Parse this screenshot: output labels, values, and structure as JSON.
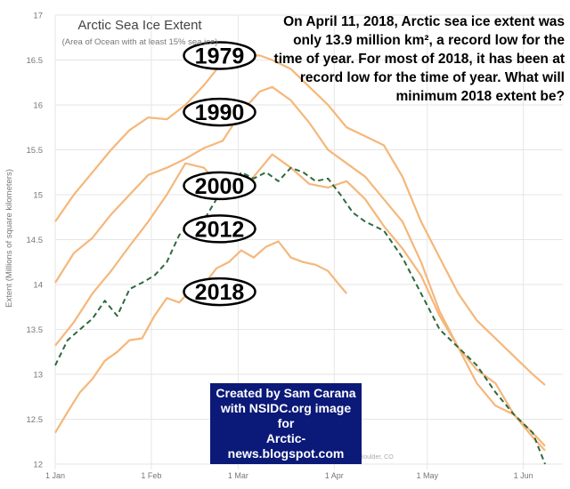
{
  "colors": {
    "series_line": "#f5b77a",
    "series_2018": "#2f6a3e",
    "grid": "#e6e6e6",
    "axis_text": "#777777",
    "credit_bg": "#0b1a78",
    "credit_text": "#ffffff"
  },
  "headline": "On April 11, 2018, Arctic sea ice extent was only 13.9 million km², a record low for the time of year. For most of 2018, it has been at record low for the time of year. What will minimum 2018 extent be?",
  "credit": {
    "line1": "Created by Sam Carana",
    "line2": "with NSIDC.org image for",
    "line3": "Arctic-news.blogspot.com"
  },
  "chart_data": {
    "type": "line",
    "title": "Arctic Sea Ice Extent",
    "subtitle": "(Area of Ocean with at least 15% sea ice)",
    "ylabel": "Extent (Millions of square kilometers)",
    "xlabel": "",
    "source_note": "National Snow and Ice Data Center, Boulder, CO",
    "ylim": [
      12,
      17
    ],
    "xlim": [
      0,
      158
    ],
    "yticks": [
      "12",
      "12.5",
      "13",
      "13.5",
      "14",
      "14.5",
      "15",
      "15.5",
      "16",
      "16.5",
      "17"
    ],
    "xticks": [
      {
        "label": "1 Jan",
        "day": 0
      },
      {
        "label": "1 Feb",
        "day": 31
      },
      {
        "label": "1 Mar",
        "day": 59
      },
      {
        "label": "1 Apr",
        "day": 90
      },
      {
        "label": "1 May",
        "day": 120
      },
      {
        "label": "1 Jun",
        "day": 151
      }
    ],
    "series": [
      {
        "name": "1979",
        "label_day": 53,
        "label_value": 16.55,
        "x": [
          0,
          6,
          12,
          18,
          24,
          30,
          36,
          42,
          48,
          54,
          60,
          66,
          70,
          76,
          82,
          88,
          94,
          100,
          106,
          112,
          118,
          124,
          130,
          136,
          142,
          148,
          154,
          158
        ],
        "values": [
          14.7,
          15.0,
          15.25,
          15.5,
          15.72,
          15.86,
          15.84,
          16.0,
          16.22,
          16.48,
          16.55,
          16.55,
          16.5,
          16.4,
          16.2,
          16.0,
          15.75,
          15.65,
          15.55,
          15.2,
          14.7,
          14.3,
          13.9,
          13.6,
          13.4,
          13.2,
          13.0,
          12.88
        ]
      },
      {
        "name": "1990",
        "label_day": 53,
        "label_value": 15.92,
        "x": [
          0,
          6,
          12,
          18,
          24,
          30,
          36,
          42,
          48,
          54,
          60,
          66,
          70,
          76,
          82,
          88,
          94,
          100,
          106,
          112,
          118,
          124,
          130,
          136,
          142,
          148,
          154,
          158
        ],
        "values": [
          14.02,
          14.35,
          14.52,
          14.78,
          15.0,
          15.22,
          15.3,
          15.4,
          15.52,
          15.6,
          15.92,
          16.15,
          16.2,
          16.05,
          15.8,
          15.5,
          15.35,
          15.2,
          14.95,
          14.7,
          14.25,
          13.7,
          13.3,
          13.05,
          12.9,
          12.55,
          12.3,
          12.15
        ]
      },
      {
        "name": "2000",
        "label_day": 53,
        "label_value": 15.1,
        "x": [
          0,
          6,
          12,
          18,
          24,
          30,
          36,
          42,
          48,
          54,
          58,
          64,
          70,
          76,
          82,
          88,
          94,
          100,
          106,
          112,
          118,
          124,
          130,
          136,
          142,
          148,
          154,
          158
        ],
        "values": [
          13.32,
          13.58,
          13.9,
          14.15,
          14.43,
          14.7,
          15.0,
          15.35,
          15.3,
          15.05,
          15.0,
          15.2,
          15.45,
          15.3,
          15.12,
          15.08,
          15.15,
          14.95,
          14.65,
          14.4,
          14.1,
          13.65,
          13.3,
          12.9,
          12.65,
          12.55,
          12.35,
          12.2
        ]
      },
      {
        "name": "2012",
        "label_day": 53,
        "label_value": 14.62,
        "x": [
          0,
          4,
          8,
          12,
          16,
          20,
          24,
          28,
          32,
          36,
          40,
          44,
          48,
          52,
          56,
          60,
          64,
          68,
          72,
          76,
          80,
          84,
          88,
          92,
          96,
          100,
          106,
          112,
          118,
          124,
          130,
          136,
          142,
          148,
          154,
          158
        ],
        "values": [
          13.1,
          13.38,
          13.5,
          13.62,
          13.82,
          13.65,
          13.95,
          14.02,
          14.1,
          14.25,
          14.55,
          14.68,
          14.72,
          14.95,
          15.05,
          15.25,
          15.18,
          15.25,
          15.15,
          15.3,
          15.25,
          15.15,
          15.18,
          15.0,
          14.8,
          14.7,
          14.6,
          14.3,
          13.9,
          13.5,
          13.3,
          13.1,
          12.8,
          12.55,
          12.35,
          12.0
        ]
      },
      {
        "name": "2018",
        "label_day": 53,
        "label_value": 13.92,
        "x": [
          0,
          4,
          8,
          12,
          16,
          20,
          24,
          28,
          32,
          36,
          40,
          44,
          48,
          52,
          56,
          60,
          64,
          68,
          72,
          76,
          80,
          84,
          88,
          92,
          94
        ],
        "values": [
          12.35,
          12.58,
          12.8,
          12.95,
          13.15,
          13.25,
          13.38,
          13.4,
          13.65,
          13.85,
          13.8,
          13.95,
          14.0,
          14.18,
          14.25,
          14.38,
          14.3,
          14.42,
          14.48,
          14.3,
          14.25,
          14.22,
          14.15,
          13.98,
          13.9
        ]
      }
    ]
  }
}
